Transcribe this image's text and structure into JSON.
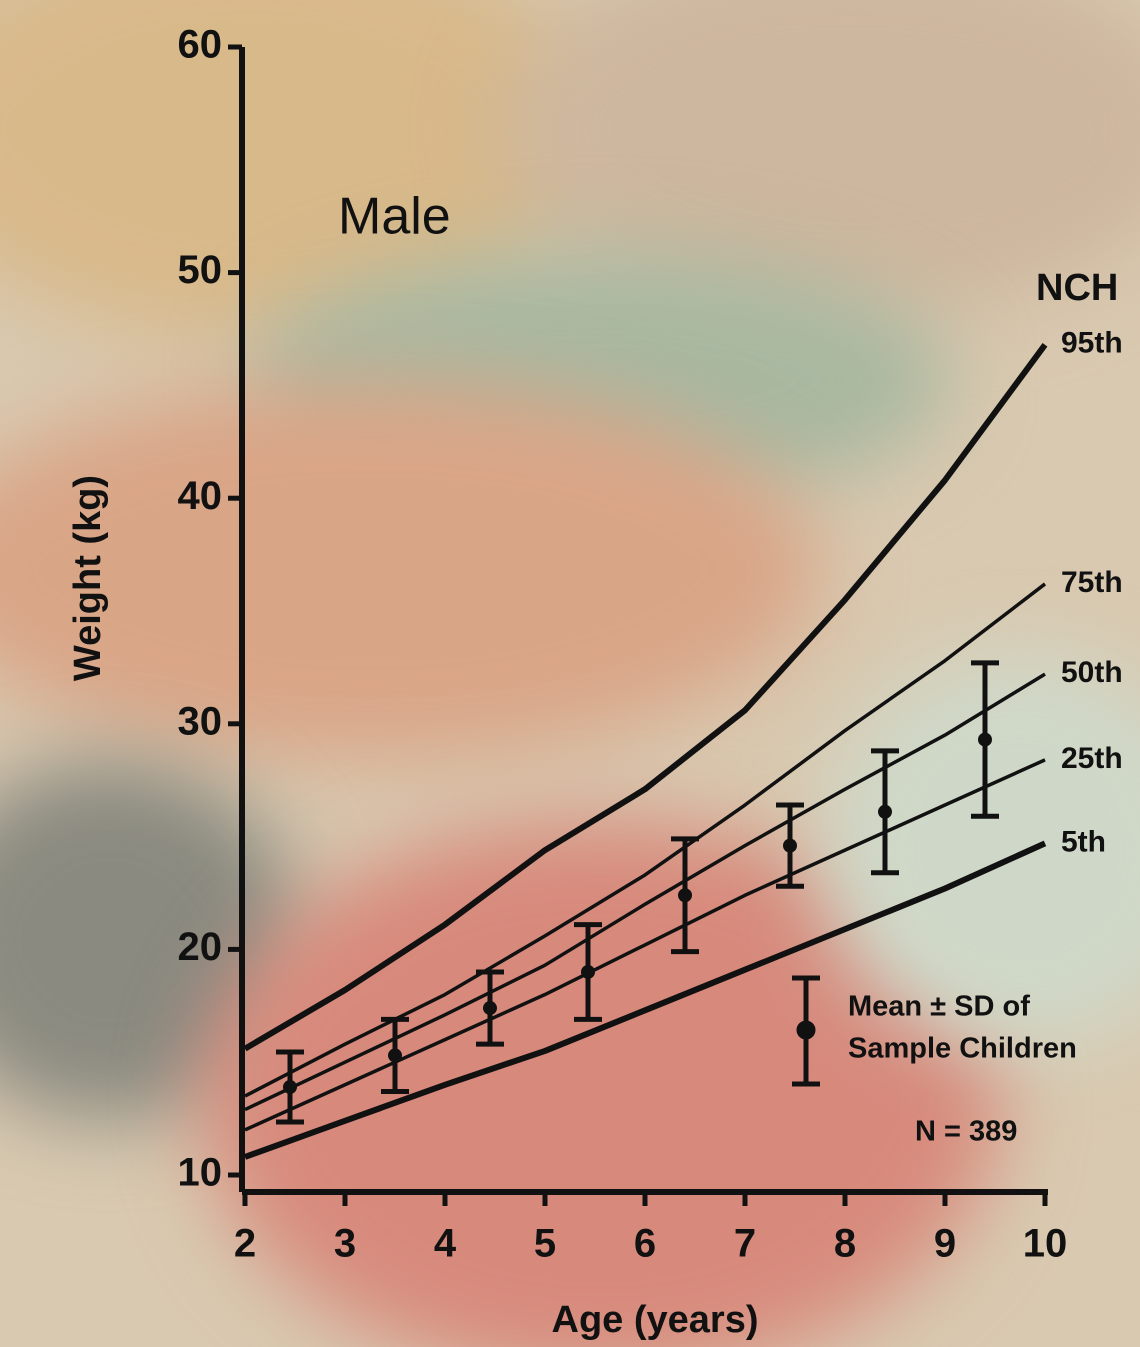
{
  "chart_data": {
    "type": "line",
    "title": "Male",
    "source_label": "NCH",
    "x_label": "Age (years)",
    "y_label": "Weight (kg)",
    "x": [
      2,
      3,
      4,
      5,
      6,
      7,
      8,
      9,
      10
    ],
    "xlim": [
      2,
      10
    ],
    "xticks": [
      2,
      3,
      4,
      5,
      6,
      7,
      8,
      9,
      10
    ],
    "ylim": [
      10,
      60
    ],
    "yticks": [
      10,
      20,
      30,
      40,
      50,
      60
    ],
    "color": "#111111",
    "series": [
      {
        "name": "95th",
        "values": [
          15.6,
          18.2,
          21.1,
          24.4,
          27.1,
          30.6,
          35.5,
          40.8,
          46.8
        ]
      },
      {
        "name": "75th",
        "values": [
          13.5,
          15.8,
          18.0,
          20.6,
          23.3,
          26.4,
          29.7,
          32.8,
          36.2
        ]
      },
      {
        "name": "50th",
        "values": [
          12.9,
          15.0,
          17.1,
          19.3,
          22.0,
          24.6,
          27.1,
          29.5,
          32.2
        ]
      },
      {
        "name": "25th",
        "values": [
          12.0,
          14.0,
          16.0,
          18.0,
          20.2,
          22.4,
          24.4,
          26.4,
          28.4
        ]
      },
      {
        "name": "5th",
        "values": [
          10.8,
          12.4,
          14.0,
          15.5,
          17.3,
          19.1,
          20.9,
          22.7,
          24.7
        ]
      }
    ],
    "samples": {
      "x": [
        2.45,
        3.5,
        4.45,
        5.43,
        6.4,
        7.45,
        8.4,
        9.4
      ],
      "mean": [
        13.9,
        15.3,
        17.4,
        19.0,
        22.4,
        24.6,
        26.1,
        29.3
      ],
      "sd": [
        1.55,
        1.6,
        1.6,
        2.1,
        2.5,
        1.8,
        2.7,
        3.4
      ]
    },
    "legend_text": [
      "Mean  ± SD of",
      "Sample Children"
    ],
    "n_label": "N = 389"
  }
}
